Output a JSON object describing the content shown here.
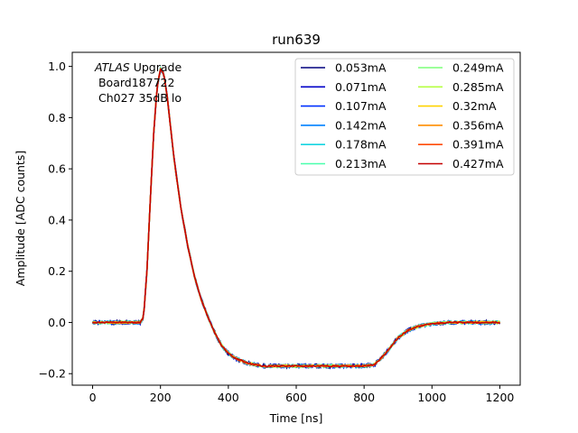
{
  "chart_data": {
    "type": "line",
    "title": "run639",
    "xlabel": "Time [ns]",
    "ylabel": "Amplitude [ADC counts]",
    "xlim": [
      -60,
      1260
    ],
    "ylim": [
      -0.245,
      1.055
    ],
    "xticks": [
      0,
      200,
      400,
      600,
      800,
      1000,
      1200
    ],
    "yticks": [
      -0.2,
      0.0,
      0.2,
      0.4,
      0.6,
      0.8,
      1.0
    ],
    "xtick_labels": [
      "0",
      "200",
      "400",
      "600",
      "800",
      "1000",
      "1200"
    ],
    "ytick_labels": [
      "−0.2",
      "0.0",
      "0.2",
      "0.4",
      "0.6",
      "0.8",
      "1.0"
    ],
    "grid": false,
    "legend_position": "top-right",
    "legend_columns": 2,
    "annotation": {
      "line1_italic": "ATLAS",
      "line1_rest": " Upgrade",
      "line2": " Board187722",
      "line3": " Ch027 35dB lo"
    },
    "pulse_shape": {
      "x": [
        0,
        120,
        140,
        150,
        160,
        170,
        180,
        190,
        200,
        210,
        220,
        230,
        240,
        260,
        280,
        300,
        320,
        340,
        360,
        380,
        400,
        420,
        440,
        460,
        480,
        500,
        550,
        600,
        700,
        800,
        830,
        850,
        870,
        900,
        930,
        960,
        1000,
        1050,
        1100,
        1150,
        1200
      ],
      "y": [
        0.0,
        0.0,
        0.0,
        0.02,
        0.2,
        0.48,
        0.74,
        0.92,
        0.99,
        0.97,
        0.88,
        0.76,
        0.64,
        0.45,
        0.3,
        0.18,
        0.09,
        0.02,
        -0.04,
        -0.09,
        -0.12,
        -0.14,
        -0.15,
        -0.16,
        -0.165,
        -0.17,
        -0.17,
        -0.17,
        -0.17,
        -0.17,
        -0.165,
        -0.14,
        -0.11,
        -0.06,
        -0.03,
        -0.015,
        -0.005,
        0.0,
        0.0,
        0.0,
        0.0
      ]
    },
    "series": [
      {
        "name": "0.053mA",
        "color": "#00007f"
      },
      {
        "name": "0.071mA",
        "color": "#0000c8"
      },
      {
        "name": "0.107mA",
        "color": "#0030ff"
      },
      {
        "name": "0.142mA",
        "color": "#0080ff"
      },
      {
        "name": "0.178mA",
        "color": "#15d4e1"
      },
      {
        "name": "0.213mA",
        "color": "#49ffad"
      },
      {
        "name": "0.249mA",
        "color": "#7cff79"
      },
      {
        "name": "0.285mA",
        "color": "#b6ff41"
      },
      {
        "name": "0.32mA",
        "color": "#ffd300"
      },
      {
        "name": "0.356mA",
        "color": "#ff8d00"
      },
      {
        "name": "0.391mA",
        "color": "#ff4a00"
      },
      {
        "name": "0.427mA",
        "color": "#c40000"
      }
    ]
  }
}
